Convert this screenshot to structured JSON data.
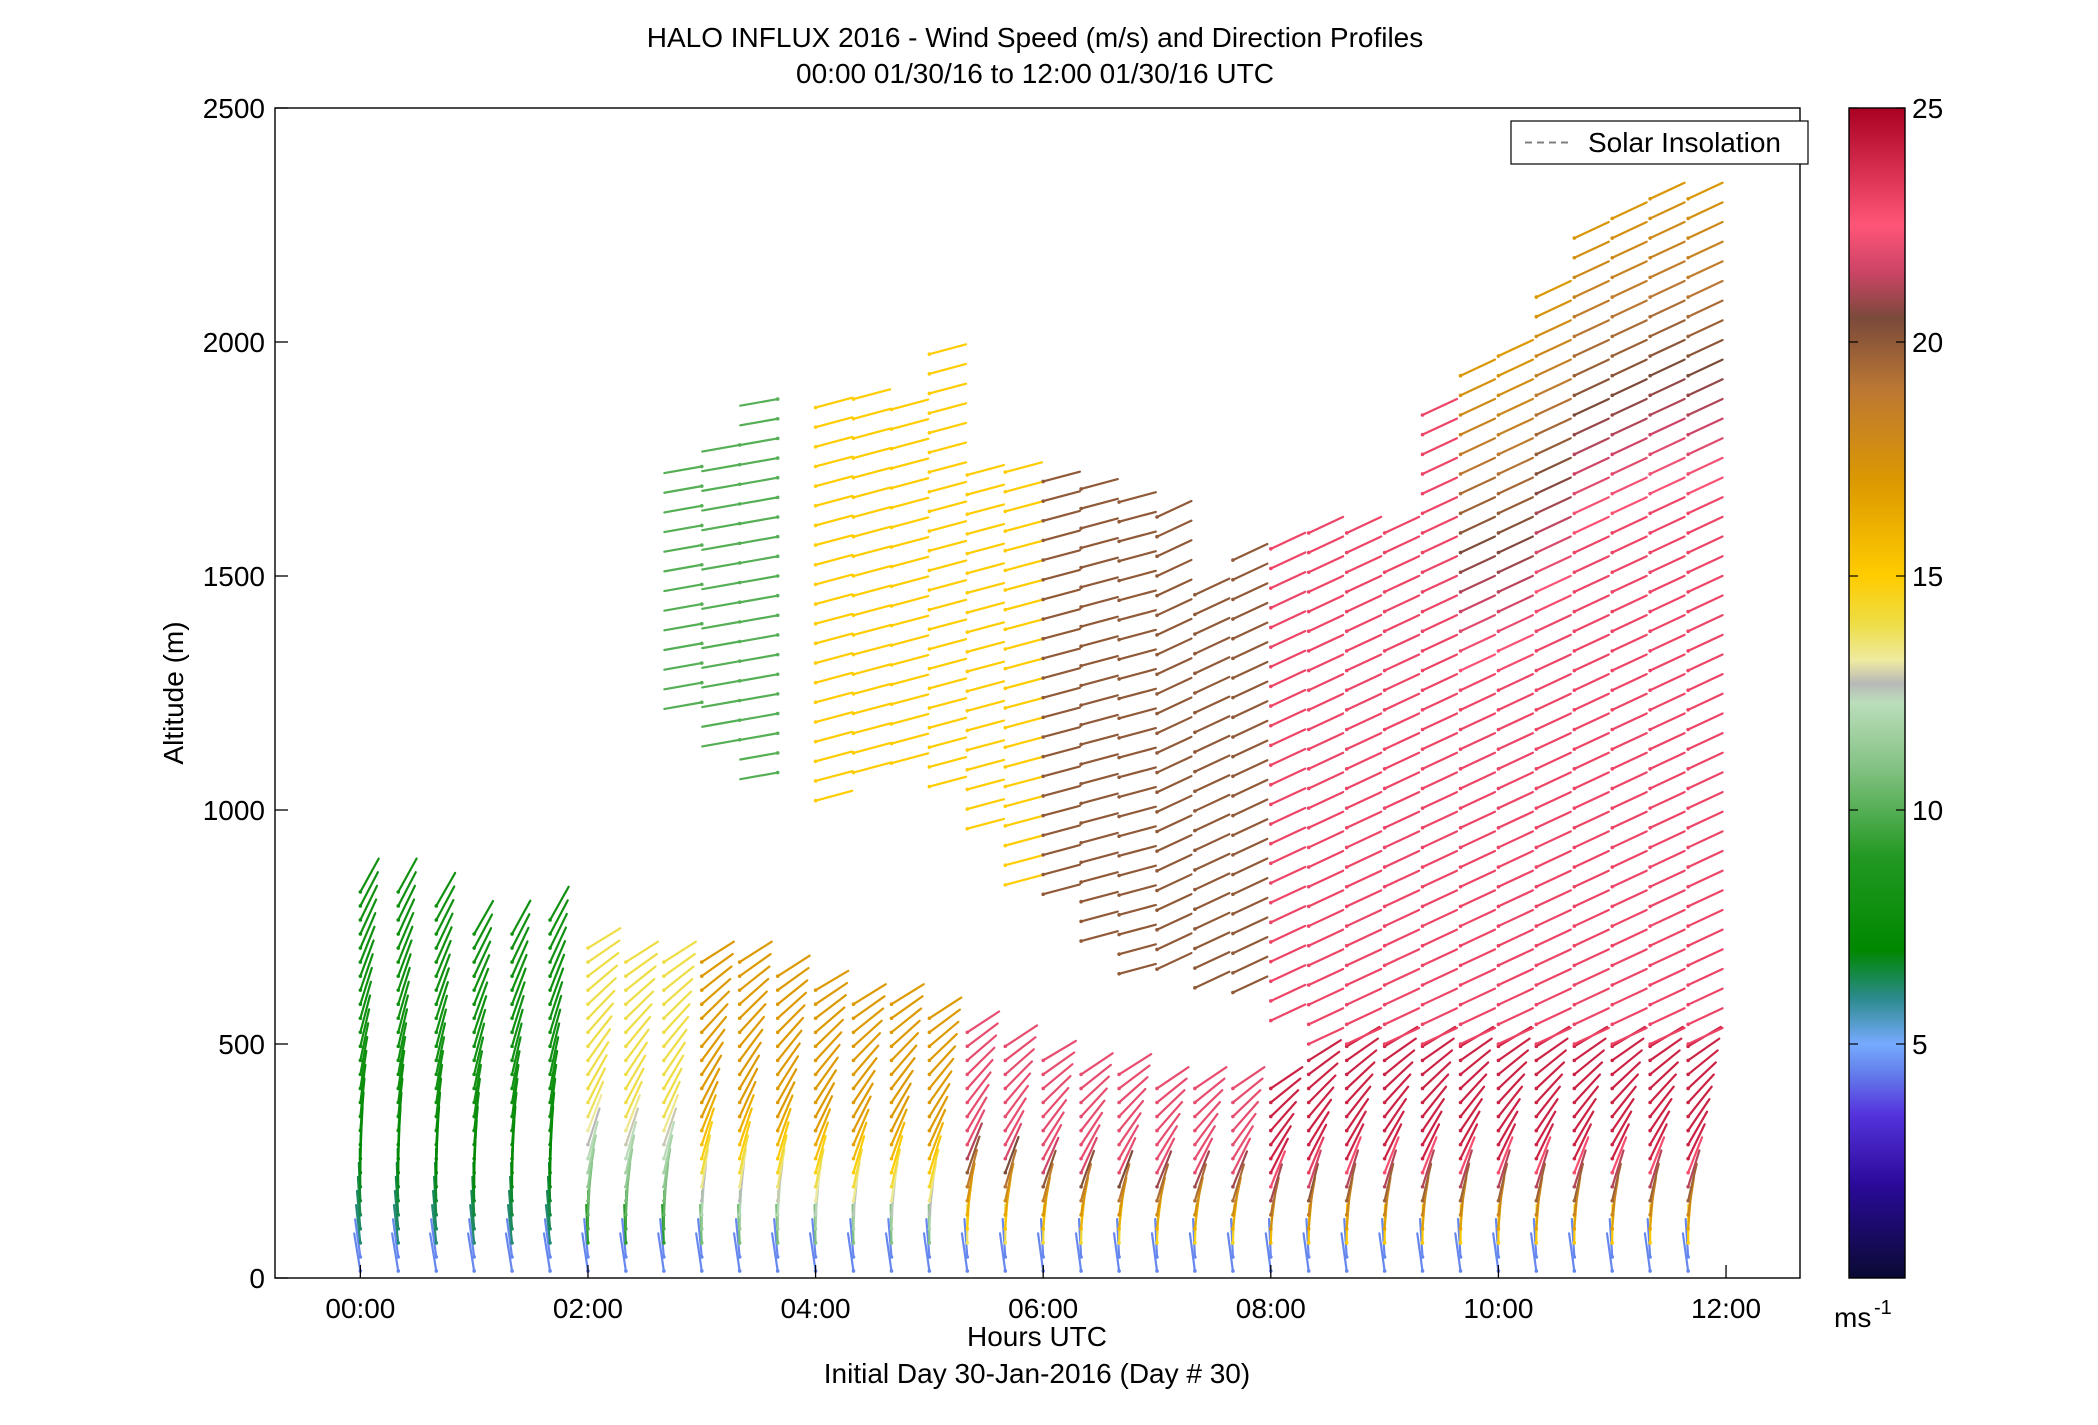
{
  "chart_data": {
    "type": "wind_barb_profile",
    "title": "HALO INFLUX 2016 - Wind Speed (m/s) and Direction Profiles",
    "subtitle": "00:00 01/30/16 to 12:00 01/30/16  UTC",
    "xlabel": "Hours UTC",
    "xlabel2": "Initial Day 30-Jan-2016 (Day # 30)",
    "ylabel": "Altitude (m)",
    "xlim_hours": [
      -0.75,
      12.65
    ],
    "ylim": [
      0,
      2500
    ],
    "x_ticks": [
      {
        "hour": 0,
        "label": "00:00"
      },
      {
        "hour": 2,
        "label": "02:00"
      },
      {
        "hour": 4,
        "label": "04:00"
      },
      {
        "hour": 6,
        "label": "06:00"
      },
      {
        "hour": 8,
        "label": "08:00"
      },
      {
        "hour": 10,
        "label": "10:00"
      },
      {
        "hour": 12,
        "label": "12:00"
      }
    ],
    "y_ticks": [
      {
        "value": 0,
        "label": "0"
      },
      {
        "value": 500,
        "label": "500"
      },
      {
        "value": 1000,
        "label": "1000"
      },
      {
        "value": 1500,
        "label": "1500"
      },
      {
        "value": 2000,
        "label": "2000"
      },
      {
        "value": 2500,
        "label": "2500"
      }
    ],
    "legend": {
      "label": "Solar Insolation",
      "position": "top-right",
      "color": "#808080"
    },
    "colorbar": {
      "range": [
        0,
        25
      ],
      "ticks": [
        {
          "value": 5,
          "label": "5"
        },
        {
          "value": 10,
          "label": "10"
        },
        {
          "value": 15,
          "label": "15"
        },
        {
          "value": 20,
          "label": "20"
        },
        {
          "value": 25,
          "label": "25"
        }
      ],
      "unit_base": "ms",
      "unit_exp": "-1",
      "stops": [
        {
          "v": 0,
          "c": "#0a0a33"
        },
        {
          "v": 2,
          "c": "#2a0a99"
        },
        {
          "v": 3.5,
          "c": "#5533dd"
        },
        {
          "v": 4.5,
          "c": "#6688ee"
        },
        {
          "v": 5,
          "c": "#77aaff"
        },
        {
          "v": 6,
          "c": "#2a8a8a"
        },
        {
          "v": 7,
          "c": "#008800"
        },
        {
          "v": 9,
          "c": "#229922"
        },
        {
          "v": 11,
          "c": "#88c488"
        },
        {
          "v": 12.3,
          "c": "#bbddbb"
        },
        {
          "v": 12.7,
          "c": "#b8b8b8"
        },
        {
          "v": 13.2,
          "c": "#eeeaa0"
        },
        {
          "v": 14,
          "c": "#eedd44"
        },
        {
          "v": 15,
          "c": "#ffcc00"
        },
        {
          "v": 17,
          "c": "#dd9900"
        },
        {
          "v": 19,
          "c": "#bb7733"
        },
        {
          "v": 20.5,
          "c": "#7a4a3a"
        },
        {
          "v": 21.5,
          "c": "#cc4466"
        },
        {
          "v": 22.5,
          "c": "#ff5577"
        },
        {
          "v": 23.5,
          "c": "#dd3355"
        },
        {
          "v": 25,
          "c": "#aa0022"
        }
      ]
    },
    "time_columns_hours": [
      0.0,
      0.333,
      0.667,
      1.0,
      1.333,
      1.667,
      2.0,
      2.333,
      2.667,
      3.0,
      3.333,
      3.667,
      4.0,
      4.333,
      4.667,
      5.0,
      5.333,
      5.667,
      6.0,
      6.333,
      6.667,
      7.0,
      7.333,
      7.667,
      8.0,
      8.333,
      8.667,
      9.0,
      9.333,
      9.667,
      10.0,
      10.333,
      10.667,
      11.0,
      11.333,
      11.667
    ],
    "boundary_layer_top_m": [
      850,
      850,
      800,
      740,
      760,
      780,
      720,
      700,
      700,
      700,
      700,
      670,
      620,
      600,
      600,
      580,
      550,
      520,
      470,
      460,
      450,
      430,
      430,
      430,
      430,
      480,
      500,
      500,
      500,
      500,
      500,
      500,
      500,
      500,
      500,
      500
    ],
    "upper_layer_bottom_m": [
      null,
      null,
      null,
      null,
      null,
      null,
      null,
      null,
      null,
      1230,
      1150,
      1080,
      1020,
      1080,
      1100,
      1050,
      960,
      840,
      820,
      720,
      650,
      660,
      620,
      610,
      550,
      500,
      500,
      500,
      500,
      500,
      500,
      500,
      500,
      500,
      500,
      500
    ],
    "upper_layer_top_m": [
      null,
      null,
      null,
      null,
      null,
      null,
      null,
      null,
      null,
      1750,
      1790,
      1880,
      1880,
      1880,
      1880,
      2000,
      1740,
      1730,
      1710,
      1700,
      1660,
      1650,
      1500,
      1550,
      1580,
      1630,
      1630,
      1600,
      1870,
      1950,
      1970,
      2100,
      2250,
      2290,
      2330,
      2330
    ],
    "speed_by_layer_m_s": {
      "boundary_layer_near_surface": 4.5,
      "boundary_layer_00_01": 8,
      "boundary_layer_02_03": 14,
      "boundary_layer_03_05": 17,
      "boundary_layer_05_07": 22,
      "boundary_layer_08_12": 24,
      "upper_layer_03_04": 10,
      "upper_layer_04_06": 15,
      "upper_layer_06_08": 20,
      "upper_layer_08_12": 23,
      "upper_layer_top_10_12": 17
    }
  }
}
